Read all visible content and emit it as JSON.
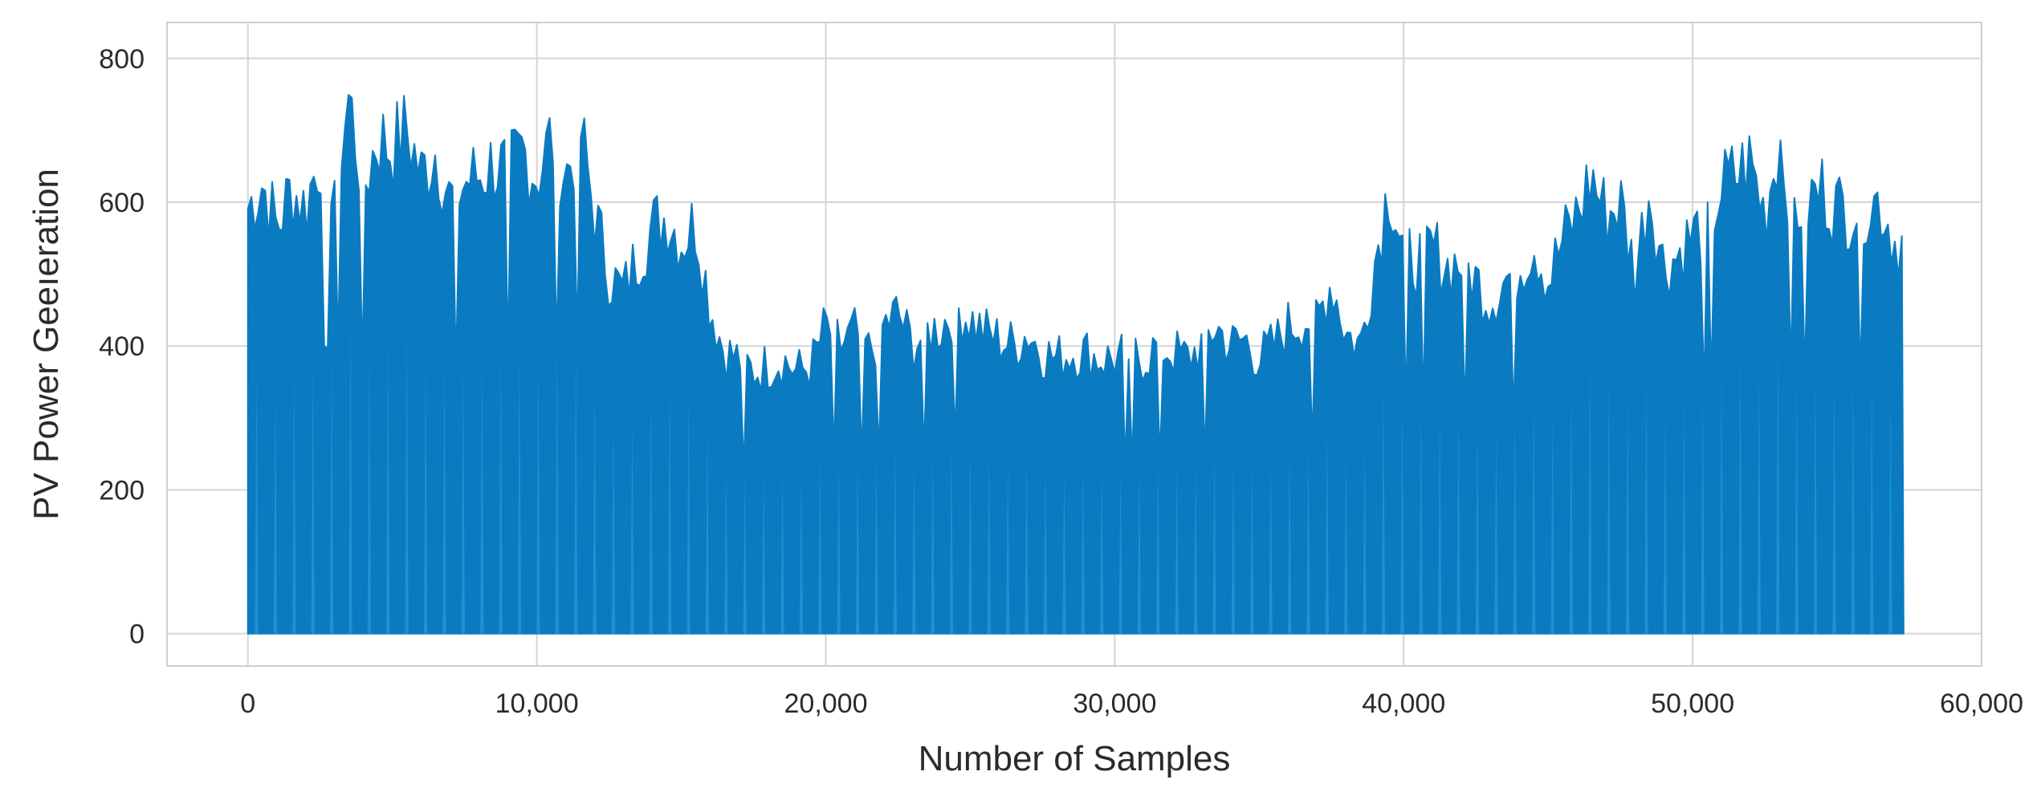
{
  "chart_data": {
    "type": "area",
    "title": "",
    "xlabel": "Number of Samples",
    "ylabel": "PV Power Geeıeration",
    "xlim": [
      -2800,
      60000
    ],
    "ylim": [
      -45,
      850
    ],
    "xticks": [
      0,
      10000,
      20000,
      30000,
      40000,
      50000,
      60000
    ],
    "xtick_labels": [
      "0",
      "10,000",
      "20,000",
      "30,000",
      "40,000",
      "50,000",
      "60,000"
    ],
    "yticks": [
      0,
      200,
      400,
      600,
      800
    ],
    "ytick_labels": [
      "0",
      "200",
      "400",
      "600",
      "800"
    ],
    "grid": true,
    "legend": "none",
    "series": [
      {
        "color": "#0a7bc1",
        "fill": "#0a7bc1",
        "x_end": 57300,
        "envelope_x": [
          0,
          500,
          1000,
          1500,
          2000,
          2500,
          3000,
          3500,
          4000,
          4500,
          5000,
          5500,
          6000,
          6500,
          7000,
          7500,
          8000,
          8500,
          9000,
          9500,
          10000,
          10500,
          11000,
          11500,
          12000,
          12500,
          13000,
          13500,
          14000,
          14500,
          15000,
          15500,
          16000,
          16500,
          17000,
          17500,
          18000,
          18500,
          19000,
          19500,
          20000,
          20500,
          21000,
          21500,
          22000,
          22500,
          23000,
          23500,
          24000,
          24500,
          25000,
          25500,
          26000,
          26500,
          27000,
          27500,
          28000,
          28500,
          29000,
          29500,
          30000,
          30500,
          31000,
          31500,
          32000,
          32500,
          33000,
          33500,
          34000,
          34500,
          35000,
          35500,
          36000,
          36500,
          37000,
          37500,
          38000,
          38500,
          39000,
          39500,
          40000,
          40500,
          41000,
          41500,
          42000,
          42500,
          43000,
          43500,
          44000,
          44500,
          45000,
          45500,
          46000,
          46500,
          47000,
          47500,
          48000,
          48500,
          49000,
          49500,
          50000,
          50500,
          51000,
          51500,
          52000,
          52500,
          53000,
          53500,
          54000,
          54500,
          55000,
          55500,
          56000,
          56500,
          57000,
          57300
        ],
        "envelope_y": [
          650,
          690,
          620,
          680,
          650,
          740,
          700,
          820,
          680,
          760,
          740,
          770,
          700,
          740,
          660,
          690,
          700,
          720,
          700,
          740,
          700,
          760,
          700,
          770,
          640,
          550,
          520,
          580,
          620,
          640,
          600,
          630,
          500,
          430,
          420,
          400,
          410,
          420,
          400,
          410,
          470,
          440,
          460,
          430,
          470,
          490,
          440,
          460,
          470,
          500,
          480,
          460,
          450,
          440,
          460,
          430,
          420,
          430,
          430,
          420,
          420,
          430,
          420,
          440,
          430,
          420,
          440,
          470,
          440,
          450,
          420,
          440,
          470,
          480,
          480,
          540,
          460,
          440,
          570,
          690,
          580,
          570,
          590,
          560,
          570,
          540,
          510,
          540,
          560,
          600,
          540,
          600,
          640,
          700,
          640,
          660,
          550,
          680,
          560,
          580,
          610,
          620,
          680,
          700,
          720,
          640,
          760,
          650,
          660,
          680,
          650,
          650,
          660,
          660,
          600,
          600
        ]
      }
    ]
  }
}
